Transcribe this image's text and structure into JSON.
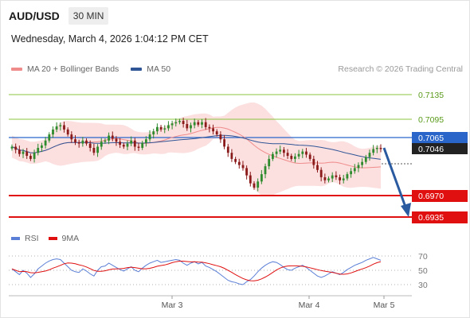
{
  "header": {
    "symbol": "AUD/USD",
    "timeframe": "30 MIN"
  },
  "datetime": "Wednesday, March 4, 2026 1:04:12 PM CET",
  "legend": {
    "items": [
      {
        "label": "MA 20 + Bollinger Bands",
        "color": "#f08b8b"
      },
      {
        "label": "MA 50",
        "color": "#2f5597"
      }
    ],
    "copyright": "Research © 2026 Trading Central"
  },
  "colors": {
    "up": "#2e8b2e",
    "down": "#8b1a1a",
    "support": "#e01010",
    "resistance": "#8cc63f",
    "pivot": "#2a66c9",
    "arrow": "#2a5aa0"
  },
  "levels": {
    "resistance": [
      "0.7135",
      "0.7095"
    ],
    "pivot": "0.7065",
    "last": "0.7046",
    "support": [
      "0.6970",
      "0.6935"
    ]
  },
  "rsi_legend": {
    "items": [
      {
        "label": "RSI",
        "color": "#5b7fd6"
      },
      {
        "label": "9MA",
        "color": "#e01010"
      }
    ],
    "levels": [
      "70",
      "50",
      "30"
    ]
  },
  "x_axis": {
    "labels": [
      "Mar 3",
      "Mar 4",
      "Mar 5"
    ]
  },
  "chart_data": {
    "type": "candlestick",
    "ylim": [
      0.6935,
      0.7135
    ],
    "close": [
      0.705,
      0.7045,
      0.7038,
      0.7042,
      0.7035,
      0.703,
      0.704,
      0.7048,
      0.7052,
      0.706,
      0.707,
      0.7078,
      0.7083,
      0.7085,
      0.7078,
      0.707,
      0.7062,
      0.7057,
      0.7055,
      0.706,
      0.7055,
      0.7048,
      0.704,
      0.705,
      0.7058,
      0.706,
      0.7068,
      0.7063,
      0.7058,
      0.7053,
      0.705,
      0.7055,
      0.706,
      0.705,
      0.7048,
      0.7056,
      0.7062,
      0.707,
      0.7075,
      0.7082,
      0.7078,
      0.708,
      0.7085,
      0.7088,
      0.709,
      0.7092,
      0.7087,
      0.708,
      0.7085,
      0.709,
      0.7086,
      0.709,
      0.7082,
      0.708,
      0.7075,
      0.707,
      0.7062,
      0.705,
      0.704,
      0.703,
      0.7025,
      0.702,
      0.7015,
      0.7003,
      0.699,
      0.6983,
      0.6993,
      0.7005,
      0.7018,
      0.703,
      0.7038,
      0.7042,
      0.7045,
      0.704,
      0.7035,
      0.703,
      0.7034,
      0.7038,
      0.7042,
      0.7037,
      0.703,
      0.702,
      0.7012,
      0.7,
      0.6995,
      0.6998,
      0.7003,
      0.7,
      0.6995,
      0.6998,
      0.7005,
      0.701,
      0.7015,
      0.702,
      0.7025,
      0.7033,
      0.704,
      0.7046,
      0.7048,
      0.7046
    ]
  },
  "rsi_data": {
    "rsi": [
      52,
      48,
      44,
      50,
      46,
      40,
      45,
      52,
      56,
      60,
      63,
      65,
      66,
      65,
      60,
      55,
      50,
      48,
      47,
      52,
      49,
      45,
      42,
      50,
      55,
      56,
      60,
      57,
      54,
      51,
      49,
      52,
      55,
      50,
      48,
      53,
      57,
      60,
      62,
      64,
      61,
      62,
      63,
      64,
      65,
      64,
      60,
      57,
      60,
      62,
      59,
      61,
      56,
      54,
      51,
      48,
      44,
      40,
      36,
      34,
      33,
      31,
      30,
      34,
      37,
      42,
      48,
      53,
      57,
      60,
      62,
      61,
      58,
      54,
      51,
      50,
      53,
      55,
      57,
      54,
      50,
      46,
      42,
      40,
      42,
      45,
      48,
      46,
      44,
      47,
      51,
      54,
      57,
      59,
      61,
      64,
      66,
      68,
      66,
      64
    ]
  }
}
